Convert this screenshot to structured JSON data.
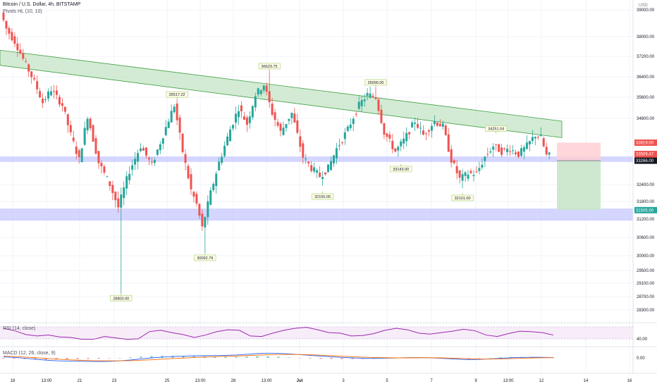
{
  "header": {
    "symbol_line": "Bitcoin / U.S. Dollar, 4h, BITSTAMP",
    "indicator_line": "Pivots HL (10, 10)",
    "currency": "USD"
  },
  "colors": {
    "up": "#26a69a",
    "down": "#ef5350",
    "channel_fill": "#c8e6c9",
    "channel_line": "#43a047",
    "zone_fill": "#c5c8ff",
    "rsi_line": "#9c27b0",
    "rsi_band": "#f3e5f5",
    "macd_line": "#2962ff",
    "signal_line": "#ff6d00",
    "stop_fill": "#ffcdd2",
    "target_fill": "#c8e6c9"
  },
  "chart_data": {
    "type": "candlestick",
    "title": "Bitcoin / U.S. Dollar, 4h, BITSTAMP",
    "y_axis": {
      "label": "USD",
      "ticks": [
        39000,
        38000,
        37200,
        36400,
        35600,
        34800,
        32400,
        31800,
        31200,
        30600,
        30000,
        29500,
        29100,
        28700,
        28300
      ]
    },
    "x_axis": {
      "ticks": [
        "18",
        "13:00",
        "21",
        "23",
        "25",
        "13:00",
        "28",
        "13:00",
        "Jul",
        "3",
        "5",
        "7",
        "9",
        "13:00",
        "12",
        "14",
        "16"
      ]
    },
    "price_path": [
      [
        0,
        38900
      ],
      [
        2,
        38300
      ],
      [
        5,
        37800
      ],
      [
        8,
        37100
      ],
      [
        12,
        36200
      ],
      [
        15,
        35400
      ],
      [
        18,
        35900
      ],
      [
        22,
        35300
      ],
      [
        25,
        34200
      ],
      [
        28,
        33300
      ],
      [
        31,
        34900
      ],
      [
        35,
        33200
      ],
      [
        39,
        32400
      ],
      [
        42,
        31600
      ],
      [
        46,
        32900
      ],
      [
        50,
        33800
      ],
      [
        54,
        33100
      ],
      [
        58,
        34200
      ],
      [
        62,
        35300
      ],
      [
        65,
        33600
      ],
      [
        68,
        32200
      ],
      [
        70,
        31700
      ],
      [
        72,
        30900
      ],
      [
        75,
        32100
      ],
      [
        78,
        33200
      ],
      [
        82,
        34400
      ],
      [
        85,
        35200
      ],
      [
        88,
        34600
      ],
      [
        91,
        35700
      ],
      [
        94,
        36100
      ],
      [
        97,
        35000
      ],
      [
        100,
        34300
      ],
      [
        104,
        35000
      ],
      [
        108,
        33400
      ],
      [
        111,
        33000
      ],
      [
        114,
        32700
      ],
      [
        117,
        33000
      ],
      [
        120,
        33700
      ],
      [
        124,
        34400
      ],
      [
        128,
        35300
      ],
      [
        131,
        35700
      ],
      [
        134,
        35600
      ],
      [
        137,
        34300
      ],
      [
        141,
        33600
      ],
      [
        144,
        34000
      ],
      [
        148,
        34700
      ],
      [
        151,
        34200
      ],
      [
        155,
        34700
      ],
      [
        158,
        34500
      ],
      [
        161,
        33300
      ],
      [
        164,
        32600
      ],
      [
        167,
        32800
      ],
      [
        170,
        32800
      ],
      [
        173,
        33400
      ],
      [
        176,
        33800
      ],
      [
        179,
        33600
      ],
      [
        182,
        33700
      ],
      [
        185,
        33500
      ],
      [
        188,
        33800
      ],
      [
        191,
        34200
      ],
      [
        193,
        34100
      ],
      [
        195,
        33450
      ]
    ],
    "annotations": [
      {
        "text": "28800.00",
        "bar": 42,
        "price": 28800,
        "position": "below"
      },
      {
        "text": "35517.22",
        "bar": 62,
        "price": 35517.22,
        "position": "above"
      },
      {
        "text": "30092.79",
        "bar": 72,
        "price": 30092.79,
        "position": "below"
      },
      {
        "text": "36623.75",
        "bar": 95,
        "price": 36623.75,
        "position": "above"
      },
      {
        "text": "32150.05",
        "bar": 114,
        "price": 32150.05,
        "position": "below"
      },
      {
        "text": "35990.00",
        "bar": 133,
        "price": 35990.0,
        "position": "above"
      },
      {
        "text": "33143.00",
        "bar": 142,
        "price": 33143.0,
        "position": "below"
      },
      {
        "text": "32101.00",
        "bar": 164,
        "price": 32101.0,
        "position": "below"
      },
      {
        "text": "34251.04",
        "bar": 176,
        "price": 34251.04,
        "position": "above"
      }
    ],
    "channel": {
      "upper_start": 37450,
      "upper_end": 34700,
      "lower_start": 36850,
      "lower_end": 34100
    },
    "zones": [
      {
        "low": 33220,
        "high": 33420
      },
      {
        "low": 31150,
        "high": 31560
      }
    ],
    "position_tool": {
      "entry": 33266,
      "stop": 33919,
      "target": 31505
    },
    "price_labels": [
      {
        "text": "33919.00",
        "price": 33919,
        "color": "#ef5350"
      },
      {
        "text": "33509.47",
        "price": 33509.47,
        "color": "#ef5350"
      },
      {
        "text": "03:20:58",
        "price": 33400,
        "color": "#ef5350"
      },
      {
        "text": "33266.00",
        "price": 33266,
        "color": "#131722"
      },
      {
        "text": "31505.00",
        "price": 31505,
        "color": "#26a69a"
      }
    ],
    "rsi": {
      "label": "RSI (14, close)",
      "value_label": "40.00",
      "values": [
        62,
        57,
        49,
        46,
        48,
        44,
        43,
        39,
        39,
        45,
        42,
        39,
        40,
        55,
        58,
        53,
        49,
        43,
        48,
        55,
        59,
        58,
        46,
        45,
        52,
        58,
        62,
        64,
        59,
        53,
        52,
        46,
        47,
        51,
        58,
        62,
        59,
        52,
        50,
        53,
        56,
        60,
        57,
        48,
        45,
        51,
        56,
        55,
        53,
        48
      ]
    },
    "macd": {
      "label": "MACD (12, 26, close, 9)",
      "value_label": "0.00",
      "macd": [
        120,
        60,
        -40,
        -160,
        -260,
        -340,
        -380,
        -400,
        -420,
        -430,
        -410,
        -350,
        -250,
        -120,
        0,
        90,
        160,
        200,
        240,
        260,
        280,
        300,
        340,
        420,
        510,
        560,
        540,
        470,
        390,
        300,
        210,
        130,
        60,
        0,
        -40,
        -60,
        -40,
        -10,
        20,
        40,
        30,
        -20,
        -90,
        -160,
        -200,
        -180,
        -120,
        -50,
        20,
        60,
        80,
        70,
        40
      ],
      "signal": [
        200,
        160,
        100,
        20,
        -60,
        -140,
        -210,
        -270,
        -310,
        -340,
        -350,
        -350,
        -330,
        -280,
        -220,
        -150,
        -80,
        -20,
        40,
        90,
        140,
        180,
        220,
        270,
        320,
        370,
        400,
        410,
        400,
        370,
        320,
        260,
        200,
        140,
        90,
        50,
        20,
        0,
        0,
        10,
        20,
        10,
        -20,
        -60,
        -100,
        -130,
        -140,
        -120,
        -90,
        -50,
        -10,
        20,
        30
      ]
    }
  }
}
